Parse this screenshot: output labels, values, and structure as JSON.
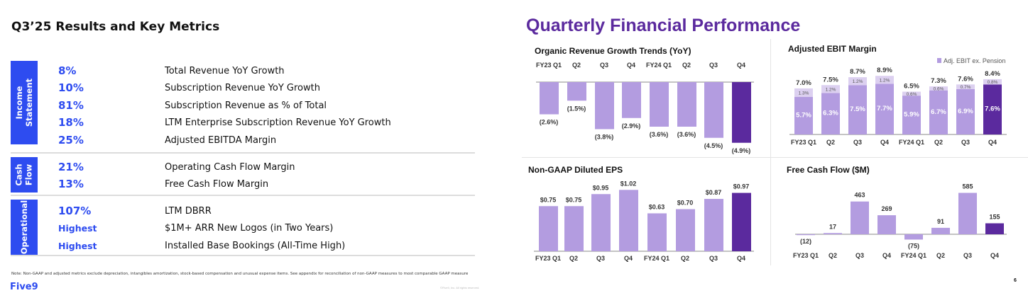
{
  "left": {
    "title": "Q3’25 Results and Key Metrics",
    "sections": [
      {
        "label": [
          "Income",
          "Statement"
        ],
        "rows": [
          {
            "value": "8%",
            "label": "Total Revenue YoY Growth"
          },
          {
            "value": "10%",
            "label": "Subscription Revenue YoY Growth"
          },
          {
            "value": "81%",
            "label": "Subscription Revenue as % of Total"
          },
          {
            "value": "18%",
            "label": "LTM Enterprise Subscription Revenue YoY Growth"
          },
          {
            "value": "25%",
            "label": "Adjusted EBITDA Margin"
          }
        ]
      },
      {
        "label": [
          "Cash",
          "Flow"
        ],
        "rows": [
          {
            "value": "21%",
            "label": "Operating Cash Flow Margin"
          },
          {
            "value": "13%",
            "label": "Free Cash Flow Margin"
          }
        ]
      },
      {
        "label": [
          "Operational"
        ],
        "rows": [
          {
            "value": "107%",
            "label": "LTM DBRR"
          },
          {
            "value": "Highest",
            "label": "$1M+ ARR New Logos (in Two Years)"
          },
          {
            "value": "Highest",
            "label": "Installed Base Bookings (All-Time High)"
          }
        ]
      }
    ],
    "note": "Note: Non-GAAP and adjusted metrics exclude depreciation, intangibles amortization, stock-based compensation and unusual expense items. See appendix for reconciliation of non-GAAP measures to most comparable GAAP measure",
    "logo": "Five9",
    "copyright": "©Five9, Inc. All rights reserved."
  },
  "right": {
    "title": "Quarterly Financial Performance",
    "page": "6"
  },
  "colors": {
    "bar": "#b39ce0",
    "highlight": "#5b2a9e",
    "pension": "#dcd0f0",
    "accent": "#2e4cf0"
  },
  "chart_data": [
    {
      "type": "bar",
      "title": "Organic Revenue Growth Trends (YoY)",
      "categories": [
        "FY23 Q1",
        "Q2",
        "Q3",
        "Q4",
        "FY24 Q1",
        "Q2",
        "Q3",
        "Q4"
      ],
      "values": [
        -2.6,
        -1.5,
        -3.8,
        -2.9,
        -3.6,
        -3.6,
        -4.5,
        -4.9
      ],
      "labels": [
        "(2.6%)",
        "(1.5%)",
        "(3.8%)",
        "(2.9%)",
        "(3.6%)",
        "(3.6%)",
        "(4.5%)",
        "(4.9%)"
      ],
      "unit": "%"
    },
    {
      "type": "bar",
      "title": "Adjusted EBIT Margin",
      "categories": [
        "FY23 Q1",
        "Q2",
        "Q3",
        "Q4",
        "FY24 Q1",
        "Q2",
        "Q3",
        "Q4"
      ],
      "legend": "Adj. EBIT ex. Pension",
      "series": [
        {
          "name": "Adj. EBIT",
          "values": [
            5.7,
            6.3,
            7.5,
            7.7,
            5.9,
            6.7,
            6.9,
            7.6
          ],
          "labels": [
            "5.7%",
            "6.3%",
            "7.5%",
            "7.7%",
            "5.9%",
            "6.7%",
            "6.9%",
            "7.6%"
          ]
        },
        {
          "name": "Pension",
          "values": [
            1.3,
            1.2,
            1.2,
            1.2,
            0.6,
            0.6,
            0.7,
            0.8
          ],
          "labels": [
            "1.3%",
            "1.2%",
            "1.2%",
            "1.2%",
            "0.6%",
            "0.6%",
            "0.7%",
            "0.8%"
          ]
        }
      ],
      "totals": [
        "7.0%",
        "7.5%",
        "8.7%",
        "8.9%",
        "6.5%",
        "7.3%",
        "7.6%",
        "8.4%"
      ],
      "total_values": [
        7.0,
        7.5,
        8.7,
        8.9,
        6.5,
        7.3,
        7.6,
        8.4
      ]
    },
    {
      "type": "bar",
      "title": "Non-GAAP Diluted EPS",
      "categories": [
        "FY23 Q1",
        "Q2",
        "Q3",
        "Q4",
        "FY24 Q1",
        "Q2",
        "Q3",
        "Q4"
      ],
      "values": [
        0.75,
        0.75,
        0.95,
        1.02,
        0.63,
        0.7,
        0.87,
        0.97
      ],
      "labels": [
        "$0.75",
        "$0.75",
        "$0.95",
        "$1.02",
        "$0.63",
        "$0.70",
        "$0.87",
        "$0.97"
      ]
    },
    {
      "type": "bar",
      "title": "Free Cash Flow ($M)",
      "categories": [
        "FY23 Q1",
        "Q2",
        "Q3",
        "Q4",
        "FY24 Q1",
        "Q2",
        "Q3",
        "Q4"
      ],
      "values": [
        -12,
        17,
        463,
        269,
        -75,
        91,
        585,
        155
      ],
      "labels": [
        "(12)",
        "17",
        "463",
        "269",
        "(75)",
        "91",
        "585",
        "155"
      ]
    }
  ]
}
